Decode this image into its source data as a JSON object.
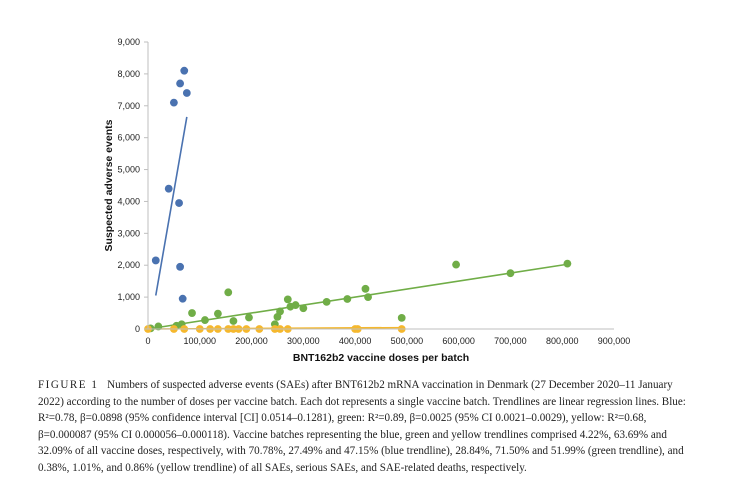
{
  "chart_data": {
    "type": "scatter",
    "title": "",
    "xlabel": "BNT162b2 vaccine doses per batch",
    "ylabel": "Suspected adverse events",
    "xlim": [
      0,
      900000
    ],
    "ylim": [
      0,
      9000
    ],
    "x_ticks": [
      0,
      100000,
      200000,
      300000,
      400000,
      500000,
      600000,
      700000,
      800000,
      900000
    ],
    "x_tick_labels": [
      "0",
      "100,000",
      "200,000",
      "300,000",
      "400,000",
      "500,000",
      "600,000",
      "700,000",
      "800,000",
      "900,000"
    ],
    "y_ticks": [
      0,
      1000,
      2000,
      3000,
      4000,
      5000,
      6000,
      7000,
      8000,
      9000
    ],
    "y_tick_labels": [
      "0",
      "1,000",
      "2,000",
      "3,000",
      "4,000",
      "5,000",
      "6,000",
      "7,000",
      "8,000",
      "9,000"
    ],
    "grid": false,
    "legend": "none",
    "series": [
      {
        "color": "#4a72b0",
        "points": [
          [
            15000,
            2150
          ],
          [
            40000,
            4400
          ],
          [
            50000,
            7100
          ],
          [
            60000,
            3950
          ],
          [
            62000,
            7700
          ],
          [
            62000,
            1950
          ],
          [
            67000,
            950
          ],
          [
            70000,
            8100
          ],
          [
            75000,
            7400
          ]
        ],
        "trendline": [
          [
            15000,
            1050
          ],
          [
            75000,
            6650
          ]
        ]
      },
      {
        "color": "#70ad47",
        "points": [
          [
            5000,
            20
          ],
          [
            20000,
            80
          ],
          [
            55000,
            100
          ],
          [
            65000,
            150
          ],
          [
            85000,
            500
          ],
          [
            110000,
            280
          ],
          [
            135000,
            480
          ],
          [
            155000,
            1150
          ],
          [
            165000,
            250
          ],
          [
            195000,
            360
          ],
          [
            245000,
            150
          ],
          [
            250000,
            380
          ],
          [
            255000,
            550
          ],
          [
            270000,
            930
          ],
          [
            275000,
            700
          ],
          [
            285000,
            750
          ],
          [
            300000,
            650
          ],
          [
            345000,
            850
          ],
          [
            385000,
            940
          ],
          [
            420000,
            1260
          ],
          [
            425000,
            1000
          ],
          [
            490000,
            350
          ],
          [
            595000,
            2020
          ],
          [
            700000,
            1750
          ],
          [
            810000,
            2050
          ]
        ],
        "trendline": [
          [
            0,
            0
          ],
          [
            810000,
            2030
          ]
        ]
      },
      {
        "color": "#f5b82e",
        "points": [
          [
            0,
            0
          ],
          [
            50000,
            0
          ],
          [
            70000,
            0
          ],
          [
            100000,
            0
          ],
          [
            120000,
            0
          ],
          [
            135000,
            0
          ],
          [
            155000,
            0
          ],
          [
            165000,
            0
          ],
          [
            175000,
            0
          ],
          [
            190000,
            0
          ],
          [
            215000,
            0
          ],
          [
            245000,
            0
          ],
          [
            255000,
            0
          ],
          [
            270000,
            0
          ],
          [
            400000,
            0
          ],
          [
            405000,
            0
          ],
          [
            490000,
            0
          ]
        ],
        "trendline": [
          [
            0,
            0
          ],
          [
            490000,
            43
          ]
        ]
      }
    ]
  },
  "caption": {
    "label": "FIGURE 1",
    "text": "Numbers of suspected adverse events (SAEs) after BNT612b2 mRNA vaccination in Denmark (27 December 2020–11 January 2022) according to the number of doses per vaccine batch. Each dot represents a single vaccine batch. Trendlines are linear regression lines. Blue: R²=0.78, β=0.0898 (95% confidence interval [CI] 0.0514–0.1281), green: R²=0.89, β=0.0025 (95% CI 0.0021–0.0029), yellow: R²=0.68, β=0.000087 (95% CI 0.000056–0.000118). Vaccine batches representing the blue, green and yellow trendlines comprised 4.22%, 63.69% and 32.09% of all vaccine doses, respectively, with 70.78%, 27.49% and 47.15% (blue trendline), 28.84%, 71.50% and 51.99% (green trendline), and 0.38%, 1.01%, and 0.86% (yellow trendline) of all SAEs, serious SAEs, and SAE-related deaths, respectively."
  }
}
